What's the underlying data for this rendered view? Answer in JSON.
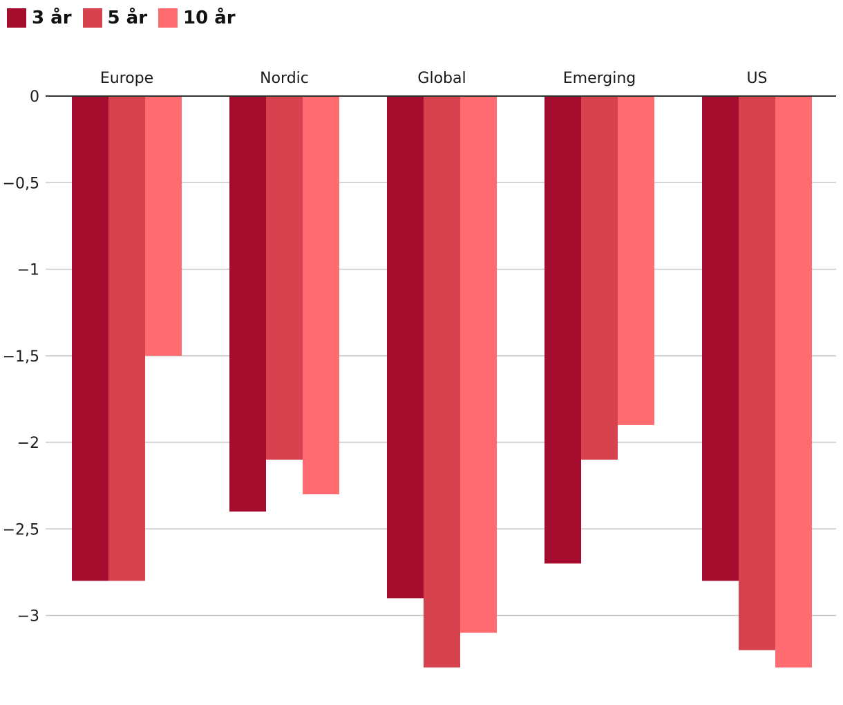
{
  "chart_data": {
    "type": "bar",
    "title": "",
    "xlabel": "",
    "ylabel": "",
    "categories": [
      "Europe",
      "Nordic",
      "Global",
      "Emerging",
      "US"
    ],
    "series": [
      {
        "name": "3 år",
        "color": "#a50d2e",
        "values": [
          -2.8,
          -2.4,
          -2.9,
          -2.7,
          -2.8
        ]
      },
      {
        "name": "5 år",
        "color": "#d6434e",
        "values": [
          -2.8,
          -2.1,
          -3.3,
          -2.1,
          -3.2
        ]
      },
      {
        "name": "10 år",
        "color": "#ff6b70",
        "values": [
          -1.5,
          -2.3,
          -3.1,
          -1.9,
          -3.3
        ]
      }
    ],
    "yticks": [
      0,
      -0.5,
      -1,
      -1.5,
      -2,
      -2.5,
      -3
    ],
    "ytick_labels": [
      "0",
      "−0,5",
      "−1",
      "−1,5",
      "−2",
      "−2,5",
      "−3"
    ],
    "ylim": [
      -3.3,
      0
    ],
    "grid": true,
    "legend": "top-left",
    "category_labels_position": "top"
  }
}
